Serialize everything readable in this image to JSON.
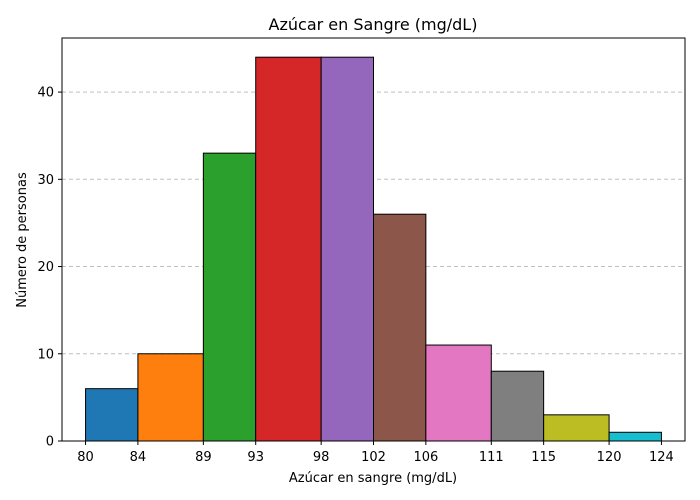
{
  "chart_data": {
    "type": "bar",
    "title": "Azúcar en Sangre (mg/dL)",
    "xlabel": "Azúcar en sangre (mg/dL)",
    "ylabel": "Número de personas",
    "bin_edges": [
      80,
      84,
      89,
      93,
      98,
      102,
      106,
      111,
      115,
      120,
      124
    ],
    "values": [
      6,
      10,
      33,
      44,
      44,
      26,
      11,
      8,
      3,
      1
    ],
    "colors": [
      "#1f77b4",
      "#ff7f0e",
      "#2ca02c",
      "#d62728",
      "#9467bd",
      "#8c564b",
      "#e377c2",
      "#7f7f7f",
      "#bcbd22",
      "#17becf"
    ],
    "x_ticks": [
      "80",
      "84",
      "89",
      "93",
      "98",
      "102",
      "106",
      "111",
      "115",
      "120",
      "124"
    ],
    "y_ticks": [
      "0",
      "10",
      "20",
      "30",
      "40"
    ],
    "ylim": [
      0,
      46.2
    ],
    "grid": "horizontal dashed"
  }
}
